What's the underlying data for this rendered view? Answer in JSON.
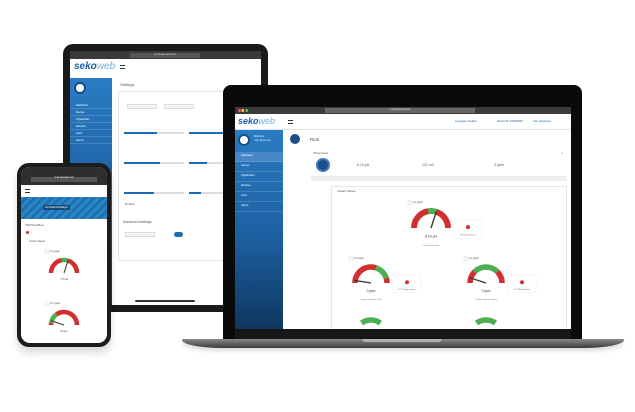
{
  "brand": {
    "logo_main": "seko",
    "logo_sub": "web",
    "accent": "#1b6db5",
    "red": "#d32f2f",
    "green": "#4caf50"
  },
  "laptop": {
    "url": "rv-01.sekoweb.com",
    "header": {
      "language": "Language: English",
      "device": "Device ID: 000000000",
      "user": "User (Engineer)"
    },
    "sidebar": {
      "welcome": "Welcome",
      "user": "User (Engineer)",
      "items": [
        "Dashboard",
        "Devices",
        "Organization",
        "Windows",
        "Users",
        "Alarms"
      ]
    },
    "page_title": "Rioti",
    "section": "Photometer",
    "readings": [
      "6.14 pH",
      "122 mV",
      "0 ppm"
    ],
    "instant_values": "Instant Values",
    "on_graph": "On graph",
    "gauges": [
      {
        "value_text": "6.14 pH",
        "value": 0.6,
        "zones": [
          0.45,
          0.6
        ],
        "caption": "Current pH value",
        "status": "pH Relay Status"
      },
      {
        "value_text": "0 ppm",
        "value": 0.05,
        "zones": [
          0.6,
          0.9
        ],
        "caption": "Current Chlorine Value",
        "status": "Cl 1 Relay Status"
      },
      {
        "value_text": "0 ppm",
        "value": 0.1,
        "zones": [
          0.25,
          0.75
        ],
        "caption": "Current Chlorine Value",
        "status": "Cl 2 Relay Status"
      }
    ]
  },
  "tablet": {
    "url": "rv-01.sekoweb.com",
    "page_title": "Settings",
    "advanced": "Advanced settings",
    "default_label": "Default"
  },
  "phone": {
    "url": "rv-01.sekoweb.com",
    "banner": "Kontrollenheltklappt",
    "section": "KBOWantBed",
    "instant_values": "Instant Values",
    "on_graph": "On graph",
    "gauges": [
      {
        "value_text": "7.6 pH",
        "value": 0.6,
        "zones": [
          0.45,
          0.6
        ]
      },
      {
        "value_text": "0 ppm",
        "value": 0.1,
        "zones": [
          0.05,
          0.3
        ]
      }
    ]
  }
}
